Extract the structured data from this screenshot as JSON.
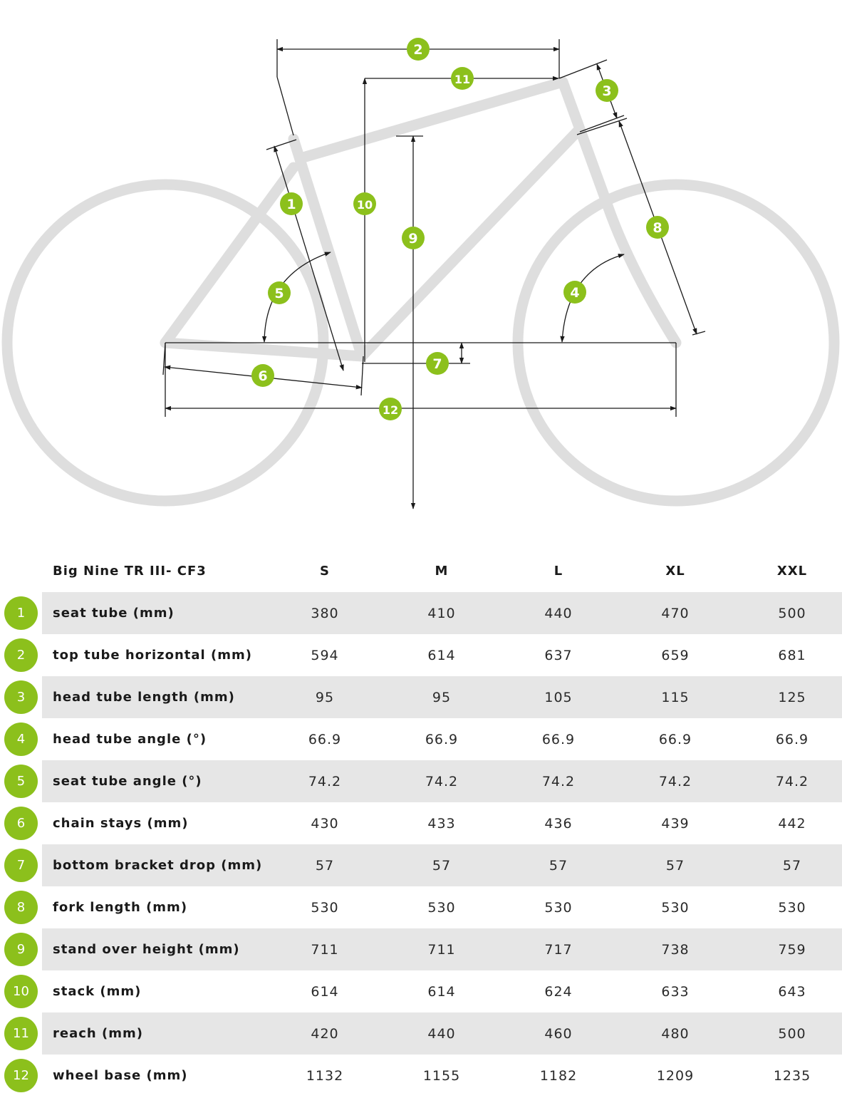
{
  "colors": {
    "accent": "#8cc01c",
    "frame": "#dedede",
    "row_shade": "#e6e6e6"
  },
  "diagram": {
    "markers": [
      "1",
      "2",
      "3",
      "4",
      "5",
      "6",
      "7",
      "8",
      "9",
      "10",
      "11",
      "12"
    ]
  },
  "table": {
    "model": "Big Nine TR III- CF3",
    "sizes": [
      "S",
      "M",
      "L",
      "XL",
      "XXL"
    ],
    "rows": [
      {
        "num": "1",
        "label": "seat tube (mm)",
        "values": [
          "380",
          "410",
          "440",
          "470",
          "500"
        ]
      },
      {
        "num": "2",
        "label": "top tube horizontal (mm)",
        "values": [
          "594",
          "614",
          "637",
          "659",
          "681"
        ]
      },
      {
        "num": "3",
        "label": "head tube length (mm)",
        "values": [
          "95",
          "95",
          "105",
          "115",
          "125"
        ]
      },
      {
        "num": "4",
        "label": "head tube angle (°)",
        "values": [
          "66.9",
          "66.9",
          "66.9",
          "66.9",
          "66.9"
        ]
      },
      {
        "num": "5",
        "label": "seat tube angle (°)",
        "values": [
          "74.2",
          "74.2",
          "74.2",
          "74.2",
          "74.2"
        ]
      },
      {
        "num": "6",
        "label": "chain stays (mm)",
        "values": [
          "430",
          "433",
          "436",
          "439",
          "442"
        ]
      },
      {
        "num": "7",
        "label": "bottom bracket drop (mm)",
        "values": [
          "57",
          "57",
          "57",
          "57",
          "57"
        ]
      },
      {
        "num": "8",
        "label": "fork length (mm)",
        "values": [
          "530",
          "530",
          "530",
          "530",
          "530"
        ]
      },
      {
        "num": "9",
        "label": "stand over height (mm)",
        "values": [
          "711",
          "711",
          "717",
          "738",
          "759"
        ]
      },
      {
        "num": "10",
        "label": "stack (mm)",
        "values": [
          "614",
          "614",
          "624",
          "633",
          "643"
        ]
      },
      {
        "num": "11",
        "label": "reach (mm)",
        "values": [
          "420",
          "440",
          "460",
          "480",
          "500"
        ]
      },
      {
        "num": "12",
        "label": "wheel base (mm)",
        "values": [
          "1132",
          "1155",
          "1182",
          "1209",
          "1235"
        ]
      }
    ]
  }
}
